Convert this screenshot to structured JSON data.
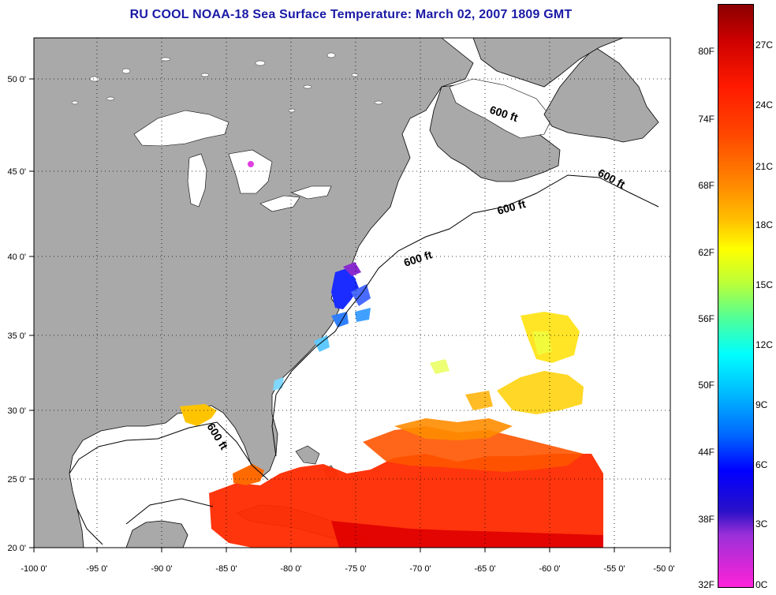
{
  "title": "RU COOL  NOAA-18  Sea Surface Temperature:  March 02, 2007 1809 GMT",
  "map": {
    "lon_range": [
      -100,
      -50
    ],
    "lat_range": [
      20,
      52.5
    ],
    "lon_ticks": [
      "-100 0'",
      "-95 0'",
      "-90 0'",
      "-85 0'",
      "-80 0'",
      "-75 0'",
      "-70 0'",
      "-65 0'",
      "-60 0'",
      "-55 0'",
      "-50 0'"
    ],
    "lat_ticks": [
      "20 0'",
      "25 0'",
      "30 0'",
      "35 0'",
      "40 0'",
      "45 0'",
      "50 0'"
    ],
    "grid": "dotted",
    "land_color": "#a9a9a9",
    "ocean_color": "#ffffff",
    "isobath_labels": [
      "600 ft",
      "600 ft",
      "600 ft",
      "600 ft",
      "600 ft"
    ]
  },
  "colorbar": {
    "fahrenheit_labels": [
      "80F",
      "74F",
      "68F",
      "62F",
      "56F",
      "50F",
      "44F",
      "38F",
      "32F"
    ],
    "celsius_labels": [
      "27C",
      "24C",
      "21C",
      "18C",
      "15C",
      "12C",
      "9C",
      "6C",
      "3C",
      "0C"
    ],
    "range_celsius": [
      0,
      28.5
    ],
    "colors": [
      "#8b0000",
      "#ff1a00",
      "#ff8a00",
      "#ffff00",
      "#00ffff",
      "#0066ff",
      "#0000ff",
      "#ff22d8"
    ]
  }
}
